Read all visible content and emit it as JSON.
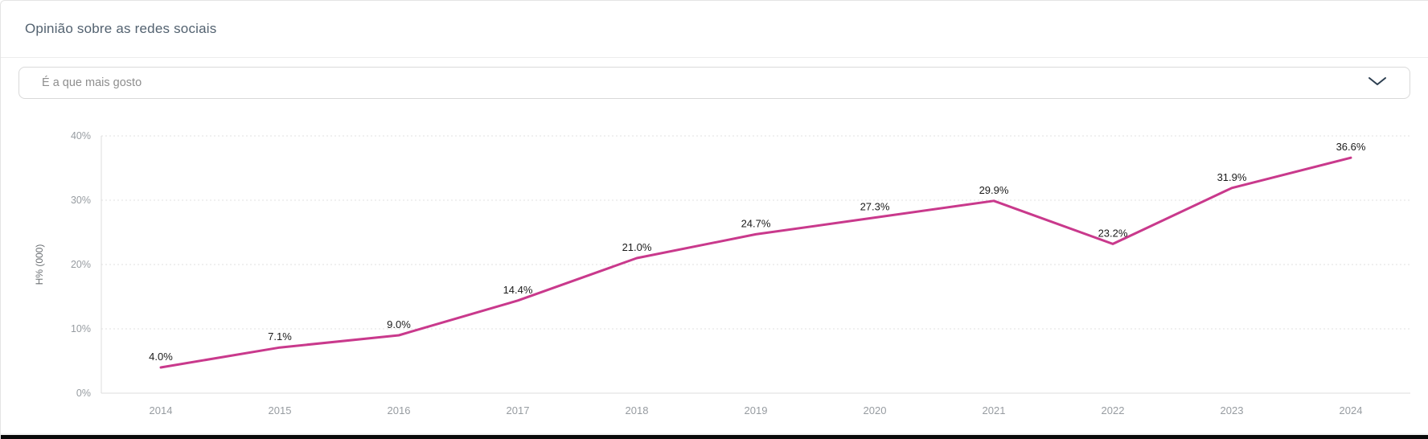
{
  "header": {
    "title": "Opinião sobre as redes sociais"
  },
  "filter": {
    "selected_option": "É a que mais gosto",
    "chevron_color": "#2c3e50"
  },
  "chart_data": {
    "type": "line",
    "title": "",
    "categories": [
      "2014",
      "2015",
      "2016",
      "2017",
      "2018",
      "2019",
      "2020",
      "2021",
      "2022",
      "2023",
      "2024"
    ],
    "series": [
      {
        "name": "É a que mais gosto",
        "values": [
          4.0,
          7.1,
          9.0,
          14.4,
          21.0,
          24.7,
          27.3,
          29.9,
          23.2,
          31.9,
          36.6
        ]
      }
    ],
    "point_labels": [
      "4.0%",
      "7.1%",
      "9.0%",
      "14.4%",
      "21.0%",
      "24.7%",
      "27.3%",
      "29.9%",
      "23.2%",
      "31.9%",
      "36.6%"
    ],
    "xlabel": "",
    "ylabel": "H% (000)",
    "ylim": [
      0,
      40
    ],
    "yticks": [
      "0%",
      "10%",
      "20%",
      "30%",
      "40%"
    ],
    "ytick_values": [
      0,
      10,
      20,
      30,
      40
    ],
    "grid": "horizontal-dotted",
    "legend": "none",
    "line_color": "#c9398c"
  }
}
